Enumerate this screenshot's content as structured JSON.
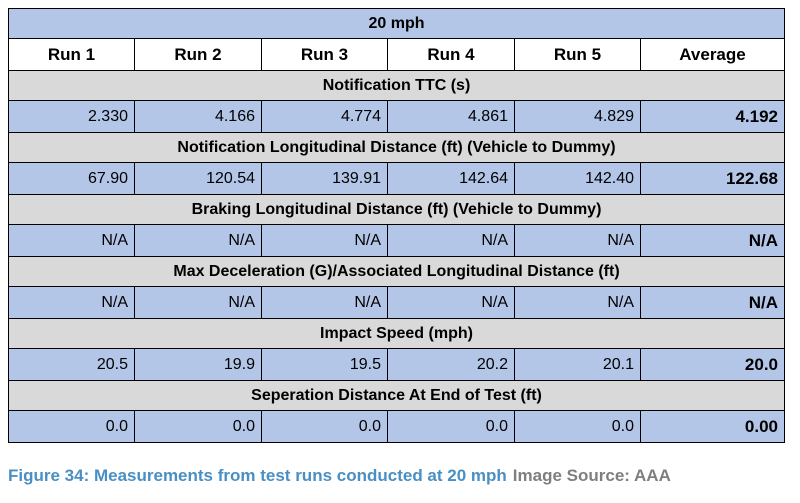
{
  "table": {
    "title": "20 mph",
    "headers": [
      "Run 1",
      "Run 2",
      "Run 3",
      "Run 4",
      "Run 5",
      "Average"
    ],
    "sections": [
      {
        "title": "Notification TTC (s)",
        "values": [
          "2.330",
          "4.166",
          "4.774",
          "4.861",
          "4.829"
        ],
        "average": "4.192"
      },
      {
        "title": "Notification Longitudinal Distance (ft) (Vehicle to Dummy)",
        "values": [
          "67.90",
          "120.54",
          "139.91",
          "142.64",
          "142.40"
        ],
        "average": "122.68"
      },
      {
        "title": "Braking Longitudinal Distance (ft) (Vehicle to Dummy)",
        "values": [
          "N/A",
          "N/A",
          "N/A",
          "N/A",
          "N/A"
        ],
        "average": "N/A"
      },
      {
        "title": "Max Deceleration (G)/Associated Longitudinal Distance (ft)",
        "values": [
          "N/A",
          "N/A",
          "N/A",
          "N/A",
          "N/A"
        ],
        "average": "N/A"
      },
      {
        "title": "Impact Speed (mph)",
        "values": [
          "20.5",
          "19.9",
          "19.5",
          "20.2",
          "20.1"
        ],
        "average": "20.0"
      },
      {
        "title": "Seperation Distance At End of Test (ft)",
        "values": [
          "0.0",
          "0.0",
          "0.0",
          "0.0",
          "0.0"
        ],
        "average": "0.00"
      }
    ]
  },
  "caption": {
    "text": "Figure 34: Measurements from test runs conducted at 20 mph",
    "source": "Image Source: AAA"
  }
}
